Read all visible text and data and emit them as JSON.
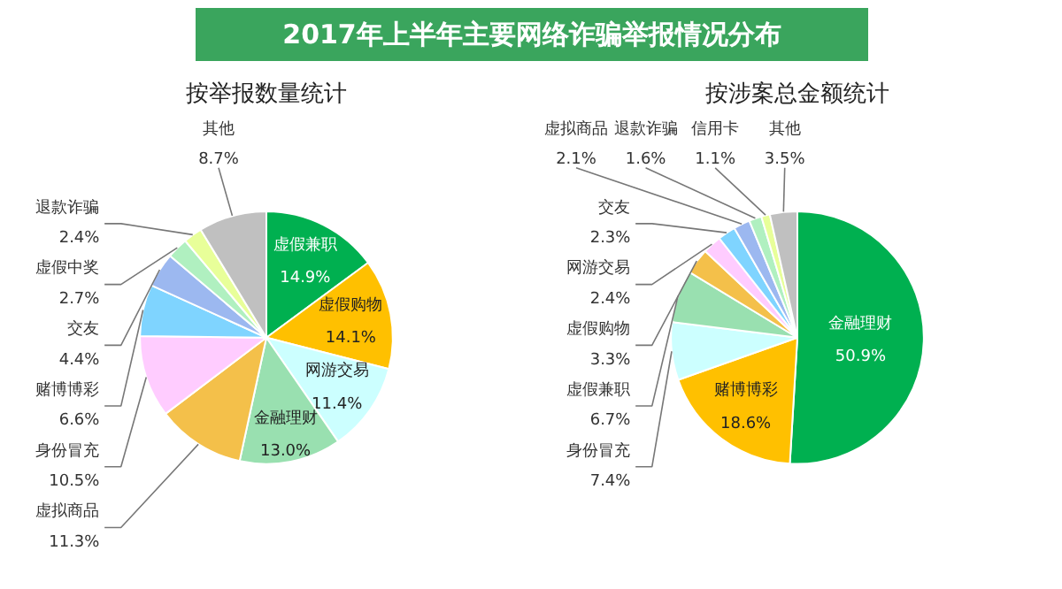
{
  "chart_data": [
    {
      "type": "pie",
      "title": "2017年上半年主要网络诈骗举报情况分布",
      "subtitle": "按举报数量统计",
      "categories": [
        "虚假兼职",
        "虚假购物",
        "网游交易",
        "金融理财",
        "虚拟商品",
        "身份冒充",
        "赌博博彩",
        "交友",
        "虚假中奖",
        "退款诈骗",
        "其他"
      ],
      "values": [
        14.9,
        14.1,
        11.4,
        13.0,
        11.3,
        10.5,
        6.6,
        4.4,
        2.7,
        2.4,
        8.7
      ],
      "value_labels": [
        "14.9%",
        "14.1%",
        "11.4%",
        "13.0%",
        "11.3%",
        "10.5%",
        "6.6%",
        "4.4%",
        "2.7%",
        "2.4%",
        "8.7%"
      ],
      "colors": [
        "#00b050",
        "#ffc000",
        "#ccffff",
        "#99e0b0",
        "#f4c04a",
        "#ffccff",
        "#7fd4ff",
        "#9cb8f0",
        "#b0f0c0",
        "#e8ff99",
        "#c0c0c0"
      ]
    },
    {
      "type": "pie",
      "subtitle": "按涉案总金额统计",
      "categories": [
        "金融理财",
        "赌博博彩",
        "身份冒充",
        "虚假兼职",
        "虚假购物",
        "网游交易",
        "交友",
        "虚拟商品",
        "退款诈骗",
        "信用卡",
        "其他"
      ],
      "values": [
        50.9,
        18.6,
        7.4,
        6.7,
        3.3,
        2.4,
        2.3,
        2.1,
        1.6,
        1.1,
        3.5
      ],
      "value_labels": [
        "50.9%",
        "18.6%",
        "7.4%",
        "6.7%",
        "3.3%",
        "2.4%",
        "2.3%",
        "2.1%",
        "1.6%",
        "1.1%",
        "3.5%"
      ],
      "colors": [
        "#00b050",
        "#ffc000",
        "#ccffff",
        "#99e0b0",
        "#f4c04a",
        "#ffccff",
        "#7fd4ff",
        "#9cb8f0",
        "#b0f0c0",
        "#e8ff99",
        "#c0c0c0"
      ]
    }
  ]
}
